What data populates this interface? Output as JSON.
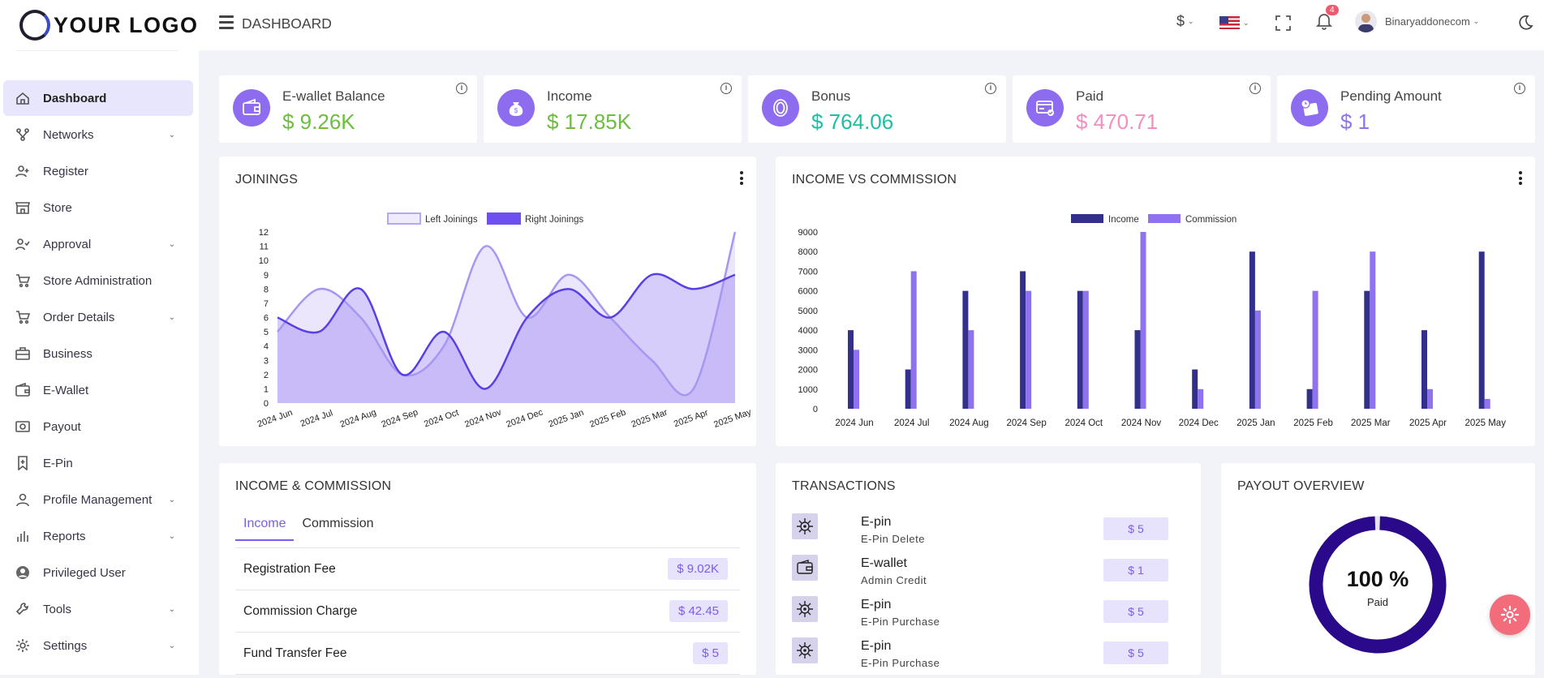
{
  "brand": {
    "logo_text": "YOUR LOGO"
  },
  "header": {
    "title": "DASHBOARD",
    "currency": "$",
    "notification_count": "4",
    "username": "Binaryaddonecom"
  },
  "sidebar": {
    "items": [
      {
        "label": "Dashboard",
        "icon": "home-icon",
        "active": true,
        "has_children": false
      },
      {
        "label": "Networks",
        "icon": "network-icon",
        "has_children": true
      },
      {
        "label": "Register",
        "icon": "user-plus-icon",
        "has_children": false
      },
      {
        "label": "Store",
        "icon": "store-icon",
        "has_children": false
      },
      {
        "label": "Approval",
        "icon": "user-check-icon",
        "has_children": true
      },
      {
        "label": "Store Administration",
        "icon": "cart-icon",
        "has_children": false
      },
      {
        "label": "Order Details",
        "icon": "cart-icon",
        "has_children": true
      },
      {
        "label": "Business",
        "icon": "briefcase-icon",
        "has_children": false
      },
      {
        "label": "E-Wallet",
        "icon": "wallet-icon",
        "has_children": false
      },
      {
        "label": "Payout",
        "icon": "payout-icon",
        "has_children": false
      },
      {
        "label": "E-Pin",
        "icon": "bookmark-icon",
        "has_children": false
      },
      {
        "label": "Profile Management",
        "icon": "user-icon",
        "has_children": true
      },
      {
        "label": "Reports",
        "icon": "bar-chart-icon",
        "has_children": true
      },
      {
        "label": "Privileged User",
        "icon": "user-circle-icon",
        "has_children": false
      },
      {
        "label": "Tools",
        "icon": "wrench-icon",
        "has_children": true
      },
      {
        "label": "Settings",
        "icon": "gear-icon",
        "has_children": true
      }
    ]
  },
  "stats": [
    {
      "label": "E-wallet Balance",
      "value": "$ 9.26K",
      "color": "#6dbd3f",
      "icon": "wallet-icon"
    },
    {
      "label": "Income",
      "value": "$ 17.85K",
      "color": "#6dbd3f",
      "icon": "money-bag-icon"
    },
    {
      "label": "Bonus",
      "value": "$ 764.06",
      "color": "#1bbfa3",
      "icon": "coin-icon"
    },
    {
      "label": "Paid",
      "value": "$ 470.71",
      "color": "#f28ec0",
      "icon": "credit-card-icon"
    },
    {
      "label": "Pending Amount",
      "value": "$ 1",
      "color": "#8e72f0",
      "icon": "pending-wallet-icon"
    }
  ],
  "joinings": {
    "title": "JOININGS"
  },
  "income_vs_commission": {
    "title": "INCOME VS COMMISSION"
  },
  "chart_data": [
    {
      "type": "area",
      "title": "JOININGS",
      "categories": [
        "2024 Jun",
        "2024 Jul",
        "2024 Aug",
        "2024 Sep",
        "2024 Oct",
        "2024 Nov",
        "2024 Dec",
        "2025 Jan",
        "2025 Feb",
        "2025 Mar",
        "2025 Apr",
        "2025 May"
      ],
      "series": [
        {
          "name": "Left Joinings",
          "values": [
            5,
            8,
            6,
            2,
            4,
            11,
            6,
            9,
            6,
            3,
            1,
            12
          ]
        },
        {
          "name": "Right Joinings",
          "values": [
            6,
            5,
            8,
            2,
            5,
            1,
            6,
            8,
            6,
            9,
            8,
            9
          ]
        }
      ],
      "ylim": [
        0,
        12
      ],
      "yticks": [
        0,
        1,
        2,
        3,
        4,
        5,
        6,
        7,
        8,
        9,
        10,
        11,
        12
      ],
      "legend": "top"
    },
    {
      "type": "bar",
      "title": "INCOME VS COMMISSION",
      "categories": [
        "2024 Jun",
        "2024 Jul",
        "2024 Aug",
        "2024 Sep",
        "2024 Oct",
        "2024 Nov",
        "2024 Dec",
        "2025 Jan",
        "2025 Feb",
        "2025 Mar",
        "2025 Apr",
        "2025 May"
      ],
      "series": [
        {
          "name": "Income",
          "values": [
            4000,
            2000,
            6000,
            7000,
            6000,
            4000,
            2000,
            8000,
            1000,
            6000,
            4000,
            8000
          ]
        },
        {
          "name": "Commission",
          "values": [
            3000,
            7000,
            4000,
            6000,
            6000,
            9000,
            1000,
            5000,
            6000,
            8000,
            1000,
            500
          ]
        }
      ],
      "ylim": [
        0,
        9000
      ],
      "yticks": [
        0,
        1000,
        2000,
        3000,
        4000,
        5000,
        6000,
        7000,
        8000,
        9000
      ],
      "legend": "top"
    }
  ],
  "income_commission": {
    "title": "INCOME & COMMISSION",
    "tabs": [
      {
        "label": "Income"
      },
      {
        "label": "Commission"
      }
    ],
    "rows": [
      {
        "name": "Registration Fee",
        "amount": "$ 9.02K"
      },
      {
        "name": "Commission Charge",
        "amount": "$ 42.45"
      },
      {
        "name": "Fund Transfer Fee",
        "amount": "$ 5"
      }
    ]
  },
  "transactions": {
    "title": "TRANSACTIONS",
    "items": [
      {
        "title": "E-pin",
        "subtitle": "E-Pin Delete",
        "amount": "$ 5",
        "icon": "epin-icon"
      },
      {
        "title": "E-wallet",
        "subtitle": "Admin Credit",
        "amount": "$ 1",
        "icon": "ewallet-icon"
      },
      {
        "title": "E-pin",
        "subtitle": "E-Pin Purchase",
        "amount": "$ 5",
        "icon": "epin-icon"
      },
      {
        "title": "E-pin",
        "subtitle": "E-Pin Purchase",
        "amount": "$ 5",
        "icon": "epin-icon"
      }
    ]
  },
  "payout": {
    "title": "PAYOUT OVERVIEW",
    "percent_label": "100 %",
    "status_label": "Paid",
    "paid_fraction": 1.0
  }
}
